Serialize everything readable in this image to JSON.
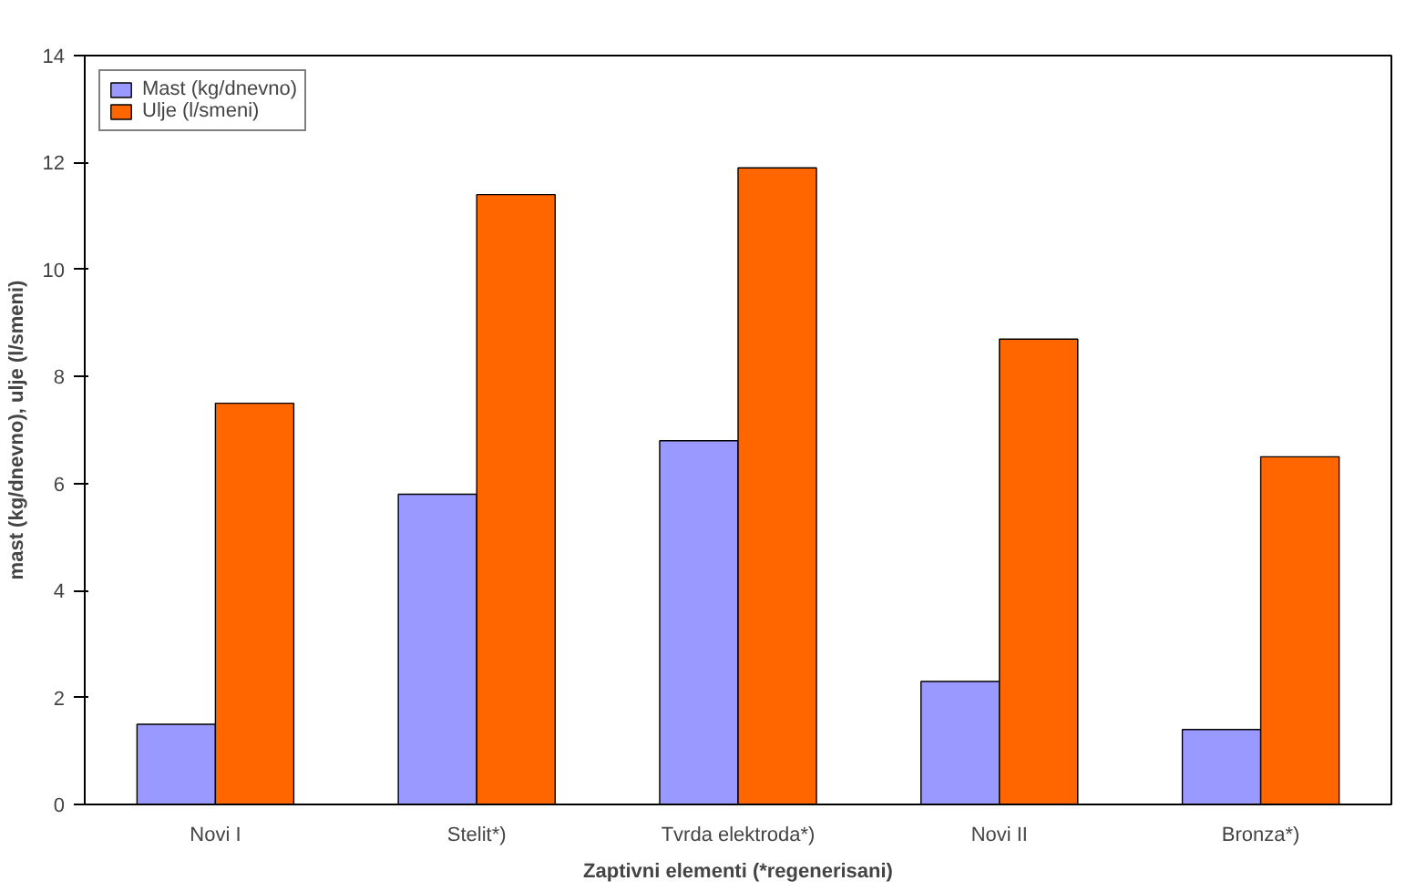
{
  "chart_data": {
    "type": "bar",
    "xlabel": "Zaptivni elementi (*regenerisani)",
    "ylabel": "mast (kg/dnevno), ulje (l/smeni)",
    "categories": [
      "Novi I",
      "Stelit*)",
      "Tvrda elektroda*)",
      "Novi II",
      "Bronza*)"
    ],
    "series": [
      {
        "name": "Mast (kg/dnevno)",
        "color": "#9999ff",
        "values": [
          1.5,
          5.8,
          6.8,
          2.3,
          1.4
        ]
      },
      {
        "name": "Ulje (l/smeni)",
        "color": "#ff6600",
        "values": [
          7.5,
          11.4,
          11.9,
          8.7,
          6.5
        ]
      }
    ],
    "ylim": [
      0,
      14
    ],
    "yticks": [
      0,
      2,
      4,
      6,
      8,
      10,
      12,
      14
    ],
    "grid": false,
    "legend": "top left"
  }
}
